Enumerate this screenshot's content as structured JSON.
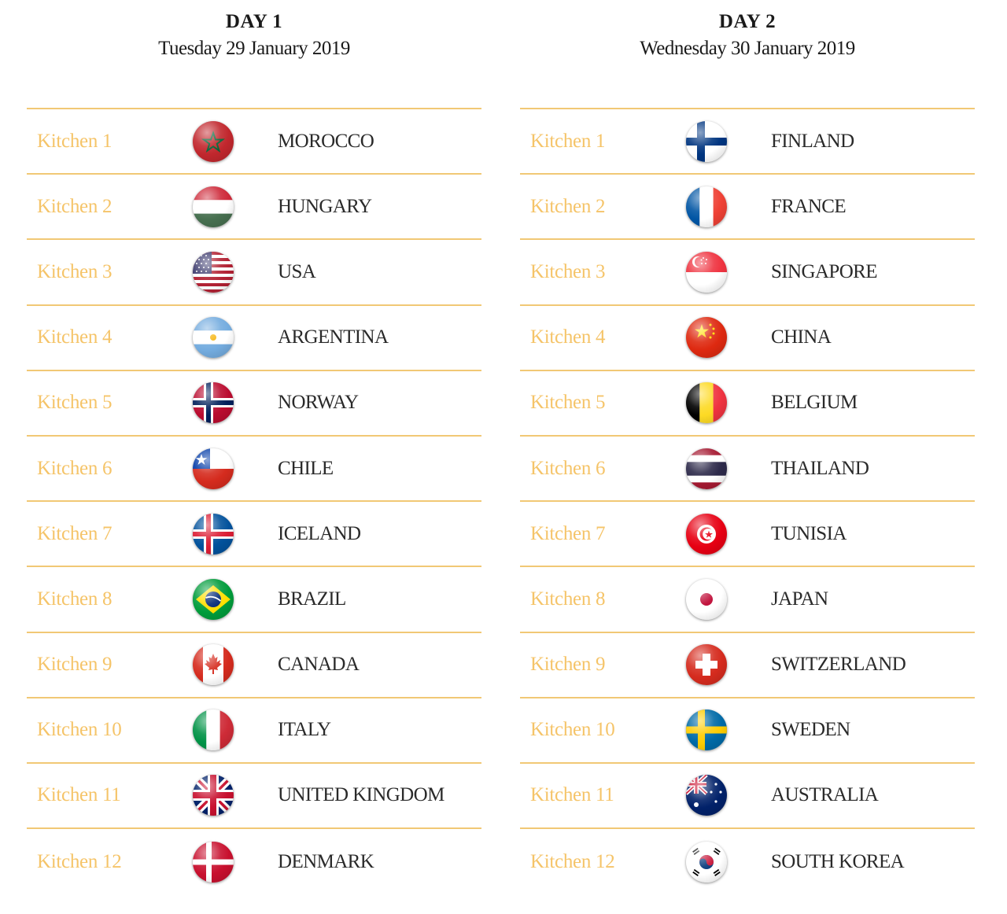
{
  "days": [
    {
      "title": "DAY 1",
      "date": "Tuesday 29 January 2019",
      "rows": [
        {
          "kitchen": "Kitchen 1",
          "country": "MOROCCO",
          "flag_icon": "morocco-flag-icon"
        },
        {
          "kitchen": "Kitchen 2",
          "country": "HUNGARY",
          "flag_icon": "hungary-flag-icon"
        },
        {
          "kitchen": "Kitchen 3",
          "country": "USA",
          "flag_icon": "usa-flag-icon"
        },
        {
          "kitchen": "Kitchen 4",
          "country": "ARGENTINA",
          "flag_icon": "argentina-flag-icon"
        },
        {
          "kitchen": "Kitchen 5",
          "country": "NORWAY",
          "flag_icon": "norway-flag-icon"
        },
        {
          "kitchen": "Kitchen 6",
          "country": "CHILE",
          "flag_icon": "chile-flag-icon"
        },
        {
          "kitchen": "Kitchen 7",
          "country": "ICELAND",
          "flag_icon": "iceland-flag-icon"
        },
        {
          "kitchen": "Kitchen 8",
          "country": "BRAZIL",
          "flag_icon": "brazil-flag-icon"
        },
        {
          "kitchen": "Kitchen 9",
          "country": "CANADA",
          "flag_icon": "canada-flag-icon"
        },
        {
          "kitchen": "Kitchen 10",
          "country": "ITALY",
          "flag_icon": "italy-flag-icon"
        },
        {
          "kitchen": "Kitchen 11",
          "country": "UNITED KINGDOM",
          "flag_icon": "uk-flag-icon"
        },
        {
          "kitchen": "Kitchen 12",
          "country": "DENMARK",
          "flag_icon": "denmark-flag-icon"
        }
      ]
    },
    {
      "title": "DAY 2",
      "date": "Wednesday 30 January 2019",
      "rows": [
        {
          "kitchen": "Kitchen 1",
          "country": "FINLAND",
          "flag_icon": "finland-flag-icon"
        },
        {
          "kitchen": "Kitchen 2",
          "country": "FRANCE",
          "flag_icon": "france-flag-icon"
        },
        {
          "kitchen": "Kitchen 3",
          "country": "SINGAPORE",
          "flag_icon": "singapore-flag-icon"
        },
        {
          "kitchen": "Kitchen 4",
          "country": "CHINA",
          "flag_icon": "china-flag-icon"
        },
        {
          "kitchen": "Kitchen 5",
          "country": "BELGIUM",
          "flag_icon": "belgium-flag-icon"
        },
        {
          "kitchen": "Kitchen 6",
          "country": "THAILAND",
          "flag_icon": "thailand-flag-icon"
        },
        {
          "kitchen": "Kitchen 7",
          "country": "TUNISIA",
          "flag_icon": "tunisia-flag-icon"
        },
        {
          "kitchen": "Kitchen 8",
          "country": "JAPAN",
          "flag_icon": "japan-flag-icon"
        },
        {
          "kitchen": "Kitchen 9",
          "country": "SWITZERLAND",
          "flag_icon": "switzerland-flag-icon"
        },
        {
          "kitchen": "Kitchen 10",
          "country": "SWEDEN",
          "flag_icon": "sweden-flag-icon"
        },
        {
          "kitchen": "Kitchen 11",
          "country": "AUSTRALIA",
          "flag_icon": "australia-flag-icon"
        },
        {
          "kitchen": "Kitchen 12",
          "country": "SOUTH KOREA",
          "flag_icon": "south-korea-flag-icon"
        }
      ]
    }
  ],
  "colors": {
    "accent": "#f5c469",
    "divider": "#f1c875",
    "text": "#2a2a2a"
  }
}
